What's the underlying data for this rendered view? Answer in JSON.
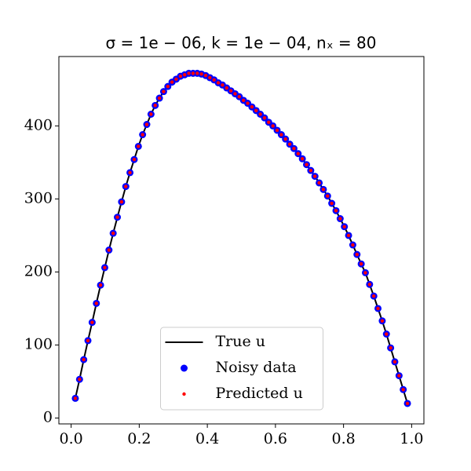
{
  "chart_data": {
    "type": "line",
    "title": "σ = 1e − 06, k = 1e − 04, nₓ = 80",
    "x": [
      0.0123,
      0.0247,
      0.037,
      0.0494,
      0.0617,
      0.0741,
      0.0864,
      0.0988,
      0.1111,
      0.1235,
      0.1358,
      0.1481,
      0.1605,
      0.1728,
      0.1852,
      0.1975,
      0.2099,
      0.2222,
      0.2346,
      0.2469,
      0.2593,
      0.2716,
      0.284,
      0.2963,
      0.3086,
      0.321,
      0.3333,
      0.3457,
      0.358,
      0.3704,
      0.3827,
      0.3951,
      0.4074,
      0.4198,
      0.4321,
      0.4444,
      0.4568,
      0.4691,
      0.4815,
      0.4938,
      0.5062,
      0.5185,
      0.5309,
      0.5432,
      0.5556,
      0.5679,
      0.5802,
      0.5926,
      0.6049,
      0.6173,
      0.6296,
      0.642,
      0.6543,
      0.6667,
      0.679,
      0.6914,
      0.7037,
      0.716,
      0.7284,
      0.7407,
      0.7531,
      0.7654,
      0.7778,
      0.7901,
      0.8025,
      0.8148,
      0.8272,
      0.8395,
      0.8519,
      0.8642,
      0.8765,
      0.8889,
      0.9012,
      0.9136,
      0.9259,
      0.9383,
      0.9506,
      0.963,
      0.9753,
      0.9877
    ],
    "series": [
      {
        "name": "True u",
        "color": "#000000",
        "style": "line",
        "values": [
          27,
          53,
          80,
          106,
          131,
          157,
          182,
          206,
          230,
          253,
          275,
          296,
          317,
          336,
          354,
          372,
          388,
          402,
          416,
          428,
          438,
          447,
          454,
          460,
          464,
          468,
          470,
          472,
          472,
          472,
          471,
          469,
          466,
          463,
          459,
          456,
          452,
          448,
          444,
          440,
          435,
          431,
          426,
          421,
          416,
          411,
          405,
          400,
          394,
          388,
          382,
          375,
          369,
          362,
          355,
          347,
          339,
          331,
          322,
          313,
          304,
          294,
          284,
          273,
          262,
          250,
          237,
          224,
          211,
          199,
          183,
          167,
          150,
          133,
          115,
          96,
          77,
          58,
          39,
          20
        ]
      },
      {
        "name": "Noisy data",
        "color": "#0000ff",
        "style": "dot",
        "values": [
          27,
          53,
          80,
          106,
          131,
          157,
          182,
          206,
          230,
          253,
          275,
          296,
          317,
          336,
          354,
          372,
          388,
          402,
          416,
          428,
          438,
          447,
          454,
          460,
          464,
          468,
          470,
          472,
          472,
          472,
          471,
          469,
          466,
          463,
          459,
          456,
          452,
          448,
          444,
          440,
          435,
          431,
          426,
          421,
          416,
          411,
          405,
          400,
          394,
          388,
          382,
          375,
          369,
          362,
          355,
          347,
          339,
          331,
          322,
          313,
          304,
          294,
          284,
          273,
          262,
          250,
          237,
          224,
          211,
          199,
          183,
          167,
          150,
          133,
          115,
          96,
          77,
          58,
          39,
          20
        ]
      },
      {
        "name": "Predicted u",
        "color": "#ff0000",
        "style": "small-dot",
        "values": [
          27,
          53,
          80,
          106,
          131,
          157,
          182,
          206,
          230,
          253,
          275,
          296,
          317,
          336,
          354,
          372,
          388,
          402,
          416,
          428,
          438,
          447,
          454,
          460,
          464,
          468,
          470,
          472,
          472,
          472,
          471,
          469,
          466,
          463,
          459,
          456,
          452,
          448,
          444,
          440,
          435,
          431,
          426,
          421,
          416,
          411,
          405,
          400,
          394,
          388,
          382,
          375,
          369,
          362,
          355,
          347,
          339,
          331,
          322,
          313,
          304,
          294,
          284,
          273,
          262,
          250,
          237,
          224,
          211,
          199,
          183,
          167,
          150,
          133,
          115,
          96,
          77,
          58,
          39,
          20
        ]
      }
    ],
    "xlim": [
      -0.036,
      1.036
    ],
    "xticks": [
      {
        "value": 0,
        "label": "0.0"
      },
      0.2,
      0.4,
      0.6,
      0.8,
      {
        "value": 1,
        "label": "1.0"
      }
    ],
    "ylim": [
      -8,
      495
    ],
    "yticks": [
      0,
      100,
      200,
      300,
      400
    ],
    "legend": "lower center"
  }
}
